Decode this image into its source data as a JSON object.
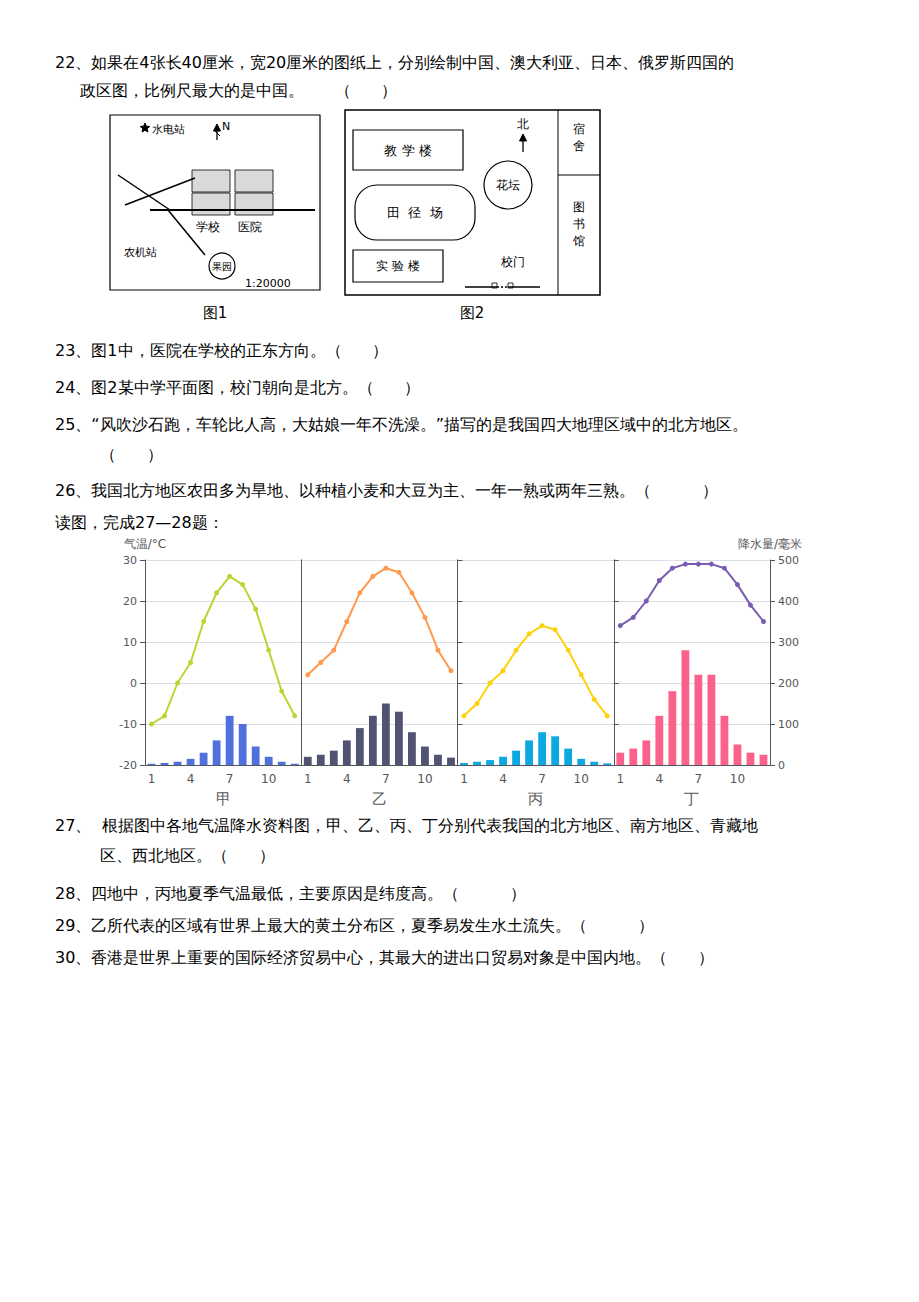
{
  "chart_data": [
    {
      "type": "bar",
      "xlabel": "甲",
      "y2label": "气温/°C",
      "categories": [
        "1",
        null,
        null,
        "4",
        null,
        null,
        "7",
        null,
        null,
        "10",
        null,
        null
      ],
      "series": [
        {
          "type": "bar",
          "values": [
            3,
            5,
            8,
            15,
            30,
            60,
            120,
            100,
            45,
            20,
            8,
            3
          ]
        },
        {
          "type": "line",
          "axis": "y2",
          "marker": "circle",
          "values": [
            -10,
            -8,
            0,
            5,
            15,
            22,
            26,
            24,
            18,
            8,
            -2,
            -8
          ]
        }
      ],
      "ylim": [
        0,
        500
      ],
      "yticks": [],
      "y2lim": [
        -20,
        30
      ],
      "y2ticks": [
        -20,
        -10,
        0,
        10,
        20,
        30
      ],
      "grid": true,
      "annotations": [
        "22、如果在4张长40厘米，宽20厘米的图纸上，分别绘制中国、澳大利亚、日本、俄罗斯四国的",
        "政区图，比例尺最大的是中国。      （      ）",
        "水电站",
        "N",
        "学校",
        "医院",
        "农机站",
        "果园",
        "1:20000",
        "图1",
        "宿舍",
        "图书馆",
        "教 学 楼",
        "花坛",
        "北",
        "田  径  场",
        "实 验 楼",
        "校门",
        "图2",
        "23、图1中，医院在学校的正东方向。（      ）",
        "24、图2某中学平面图，校门朝向是北方。（      ）",
        "25、“风吹沙石跑，车轮比人高，大姑娘一年不洗澡。”描写的是我国四大地理区域中的北方地区。",
        "（      ）",
        "26、我国北方地区农田多为旱地、以种植小麦和大豆为主、一年一熟或两年三熟。（          ）",
        "读图，完成27—28题：",
        "27、  根据图中各地气温降水资料图，甲、乙、丙、丁分别代表我国的北方地区、南方地区、青藏地",
        "区、西北地区。（      ）",
        "28、四地中，丙地夏季气温最低，主要原因是纬度高。（          ）",
        "29、乙所代表的区域有世界上最大的黄土分布区，夏季易发生水土流失。（          ）",
        "30、香港是世界上重要的国际经济贸易中心，其最大的进出口贸易对象是中国内地。（      ）"
      ]
    },
    {
      "type": "bar",
      "xlabel": "乙",
      "categories": [
        "1",
        null,
        null,
        "4",
        null,
        null,
        "7",
        null,
        null,
        "10",
        null,
        null
      ],
      "series": [
        {
          "type": "bar",
          "values": [
            20,
            25,
            35,
            60,
            90,
            120,
            150,
            130,
            80,
            45,
            25,
            18
          ]
        },
        {
          "type": "line",
          "axis": "y2",
          "marker": "circle",
          "values": [
            2,
            5,
            8,
            15,
            22,
            26,
            28,
            27,
            22,
            16,
            8,
            3
          ]
        }
      ],
      "ylim": [
        0,
        500
      ],
      "yticks": [
        0,
        100,
        200,
        300,
        400,
        500
      ],
      "y2lim": [
        -20,
        30
      ],
      "y2ticks": [],
      "grid": true,
      "tick_labels": "x"
    },
    {
      "type": "bar",
      "xlabel": "丙",
      "categories": [
        "1",
        null,
        null,
        "4",
        null,
        null,
        "7",
        null,
        null,
        "10",
        null,
        null
      ],
      "series": [
        {
          "type": "bar",
          "values": [
            5,
            8,
            12,
            20,
            35,
            60,
            80,
            70,
            40,
            15,
            8,
            4
          ]
        },
        {
          "type": "line",
          "axis": "y2",
          "marker": "circle",
          "values": [
            -8,
            -5,
            0,
            3,
            8,
            12,
            14,
            13,
            8,
            2,
            -4,
            -8
          ]
        }
      ],
      "ylim": [
        0,
        500
      ],
      "yticks": [
        0,
        100,
        200,
        300,
        400,
        500
      ],
      "y2lim": [
        -20,
        30
      ],
      "y2ticks": [],
      "grid": true,
      "tick_labels": "x"
    },
    {
      "type": "bar",
      "xlabel": "丁",
      "ylabel": "降水量/毫米",
      "categories": [
        "1",
        null,
        null,
        "4",
        null,
        null,
        "7",
        null,
        null,
        "10",
        null,
        null
      ],
      "series": [
        {
          "type": "bar",
          "values": [
            30,
            40,
            60,
            120,
            180,
            280,
            220,
            220,
            120,
            50,
            30,
            25
          ]
        },
        {
          "type": "line",
          "axis": "y2",
          "marker": "circle",
          "values": [
            14,
            16,
            20,
            25,
            28,
            29,
            29,
            29,
            28,
            24,
            19,
            15
          ]
        }
      ],
      "ylim": [
        0,
        500
      ],
      "yticks": [
        0,
        100,
        200,
        300,
        400,
        500
      ],
      "y2lim": [
        -20,
        30
      ],
      "y2ticks": [],
      "grid": true
    }
  ]
}
